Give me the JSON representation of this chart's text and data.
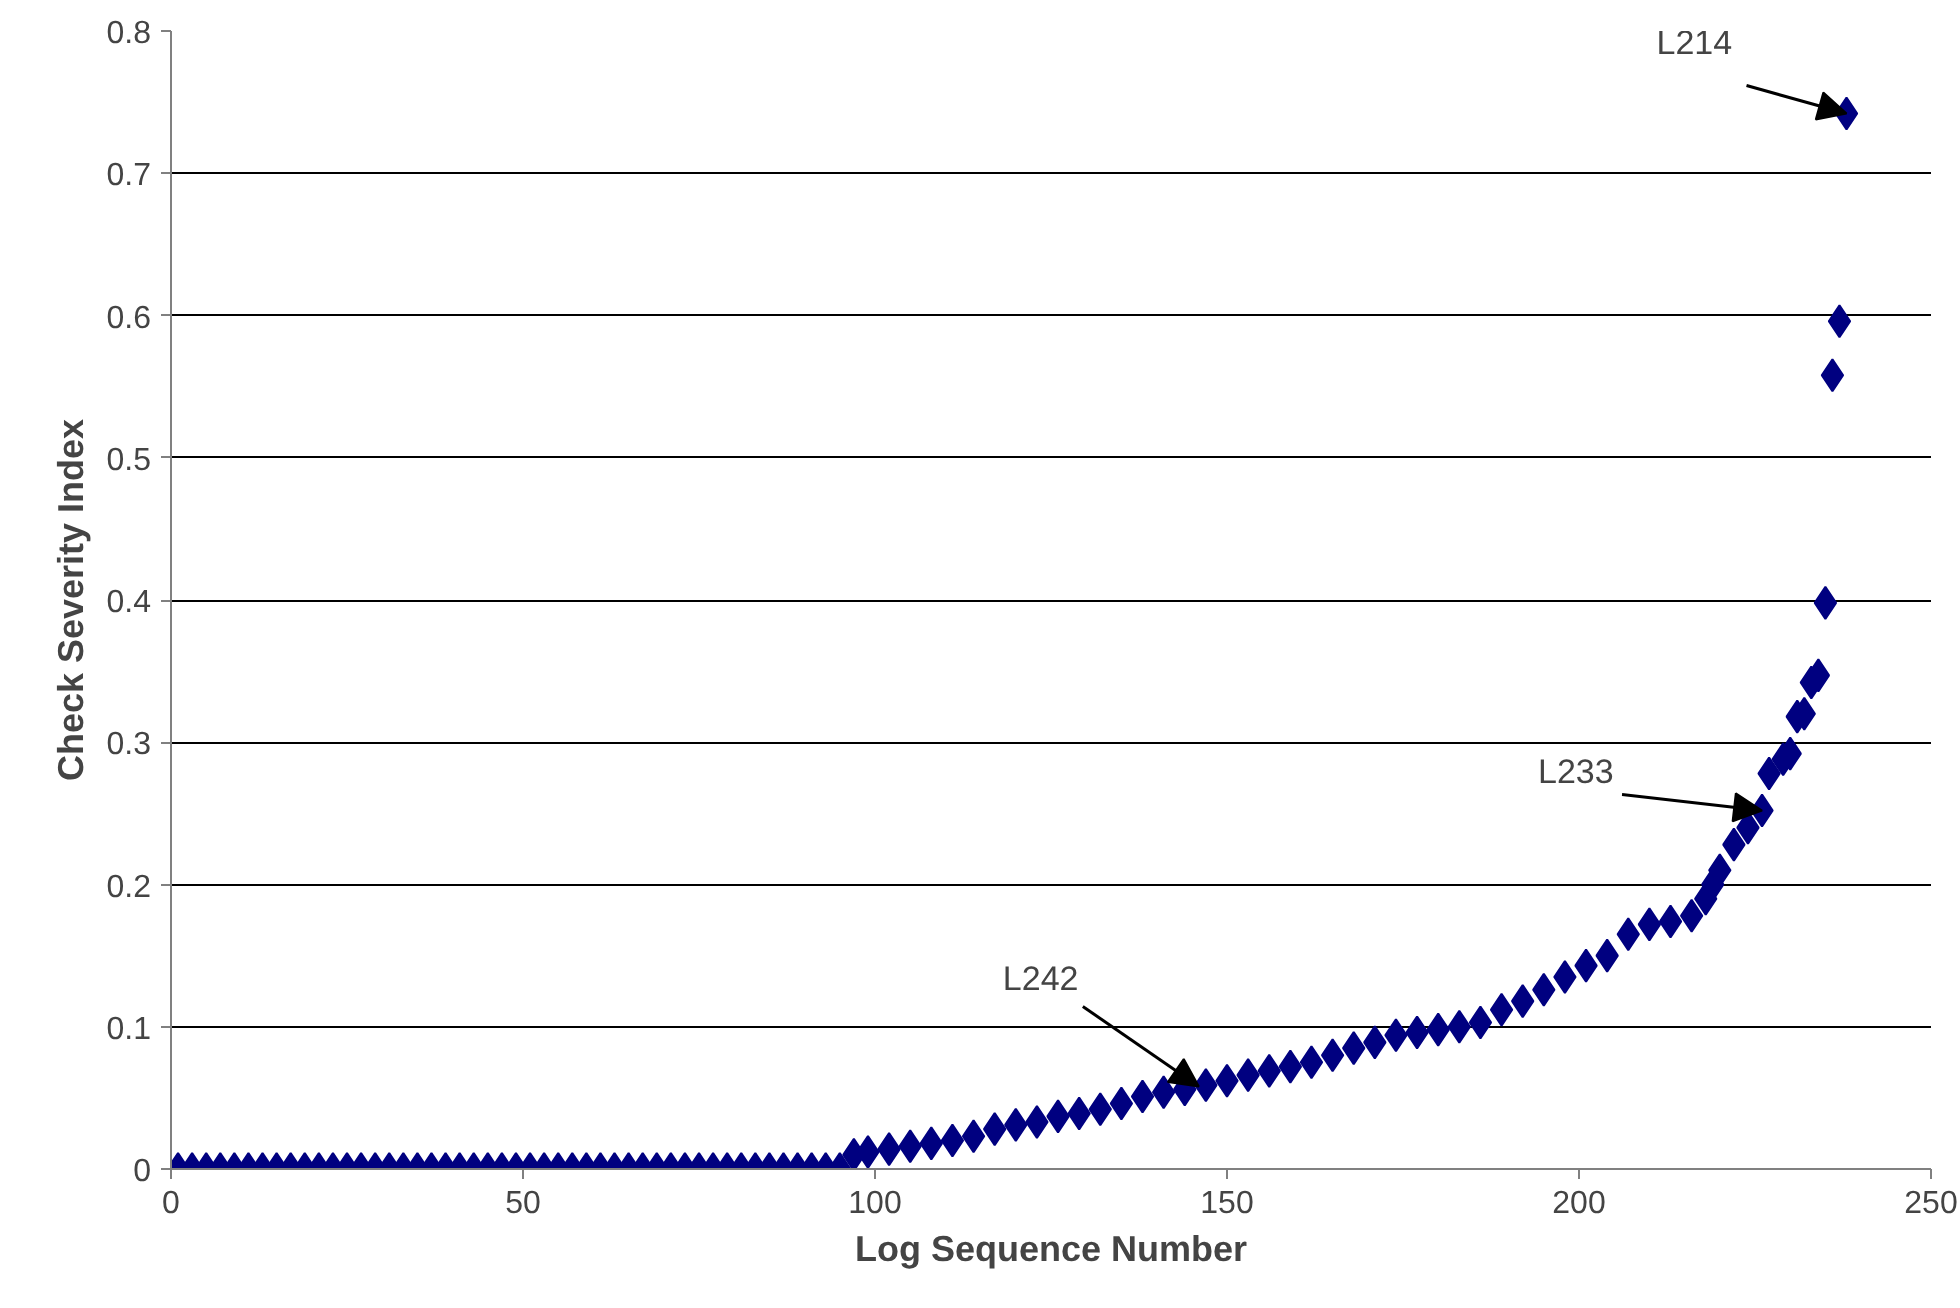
{
  "chart_data": {
    "type": "scatter",
    "xlabel": "Log Sequence Number",
    "ylabel": "Check Severity Index",
    "marker": "diamond",
    "grid": "y",
    "xlim": [
      0,
      250
    ],
    "xticks": [
      0,
      50,
      100,
      150,
      200,
      250
    ],
    "ylim": [
      0,
      0.8
    ],
    "yticks": [
      0,
      0.1,
      0.2,
      0.3,
      0.4,
      0.5,
      0.6,
      0.7,
      0.8
    ],
    "annotations": [
      {
        "text": "L214",
        "x": 238,
        "y": 0.742
      },
      {
        "text": "L233",
        "x": 226,
        "y": 0.252
      },
      {
        "text": "L242",
        "x": 146,
        "y": 0.058
      }
    ],
    "series": [
      {
        "color": "#000080",
        "x": [
          1,
          3,
          5,
          7,
          9,
          11,
          13,
          15,
          17,
          19,
          21,
          23,
          25,
          27,
          29,
          31,
          33,
          35,
          37,
          39,
          41,
          43,
          45,
          47,
          49,
          51,
          53,
          55,
          57,
          59,
          61,
          63,
          65,
          67,
          69,
          71,
          73,
          75,
          77,
          79,
          81,
          83,
          85,
          87,
          89,
          91,
          93,
          95,
          97,
          99,
          102,
          105,
          108,
          111,
          114,
          117,
          120,
          123,
          126,
          129,
          132,
          135,
          138,
          141,
          144,
          147,
          150,
          153,
          156,
          159,
          162,
          165,
          168,
          171,
          174,
          177,
          180,
          183,
          186,
          189,
          192,
          195,
          198,
          201,
          204,
          207,
          210,
          213,
          216,
          218,
          219,
          220,
          222,
          224,
          226,
          227,
          229,
          230,
          231,
          232,
          233,
          234,
          235,
          236,
          237,
          238
        ],
        "values": [
          0,
          0,
          0,
          0,
          0,
          0,
          0,
          0,
          0,
          0,
          0,
          0,
          0,
          0,
          0,
          0,
          0,
          0,
          0,
          0,
          0,
          0,
          0,
          0,
          0,
          0,
          0,
          0,
          0,
          0,
          0,
          0,
          0,
          0,
          0,
          0,
          0,
          0,
          0,
          0,
          0,
          0,
          0,
          0,
          0,
          0,
          0,
          0,
          0.01,
          0.012,
          0.014,
          0.016,
          0.018,
          0.02,
          0.023,
          0.028,
          0.031,
          0.033,
          0.037,
          0.039,
          0.042,
          0.046,
          0.051,
          0.054,
          0.056,
          0.059,
          0.062,
          0.066,
          0.069,
          0.072,
          0.075,
          0.08,
          0.085,
          0.089,
          0.094,
          0.096,
          0.098,
          0.1,
          0.103,
          0.112,
          0.118,
          0.126,
          0.135,
          0.143,
          0.15,
          0.165,
          0.172,
          0.174,
          0.178,
          0.19,
          0.2,
          0.21,
          0.228,
          0.24,
          0.252,
          0.278,
          0.288,
          0.292,
          0.318,
          0.32,
          0.342,
          0.347,
          0.398,
          0.558,
          0.596,
          0.742
        ]
      }
    ]
  }
}
